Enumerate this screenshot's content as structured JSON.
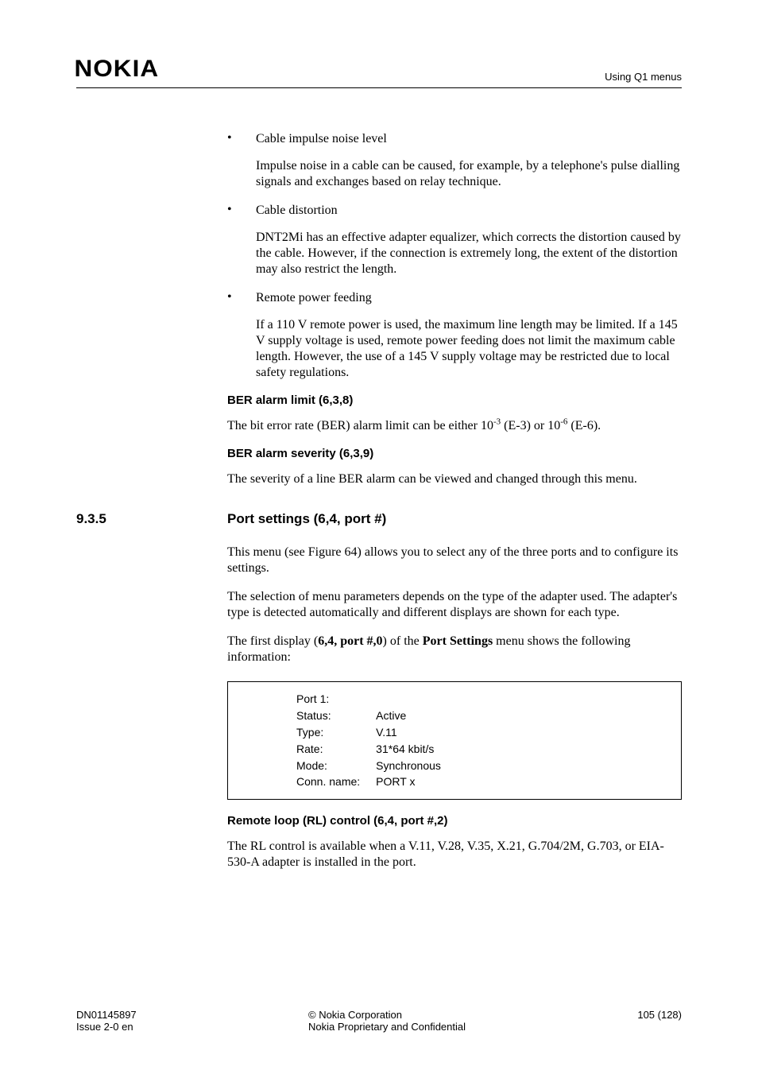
{
  "header": {
    "logo": "NOKIA",
    "right": "Using Q1 menus"
  },
  "bullets": [
    {
      "title": "Cable impulse noise level",
      "body": "Impulse noise in a cable can be caused, for example, by a telephone's pulse dialling signals and exchanges based on relay technique."
    },
    {
      "title": "Cable distortion",
      "body": "DNT2Mi has an effective adapter equalizer, which corrects the distortion caused by the cable. However, if the connection is extremely long, the extent of the distortion may also restrict the length."
    },
    {
      "title": "Remote power feeding",
      "body": "If a 110 V remote power is used, the maximum line length may be limited. If a 145 V supply voltage is used, remote power feeding does not limit the maximum cable length. However, the use of a 145 V supply voltage may be restricted due to local safety regulations."
    }
  ],
  "ber_limit": {
    "heading": "BER alarm limit (6,3,8)",
    "text_pre": "The bit error rate (BER) alarm limit can be either 10",
    "exp1": "-3",
    "mid1": " (E-3) or 10",
    "exp2": "-6",
    "mid2": " (E-6)."
  },
  "ber_severity": {
    "heading": "BER alarm severity (6,3,9)",
    "text": "The severity of a line BER alarm can be viewed and changed through this menu."
  },
  "section": {
    "num": "9.3.5",
    "title": "Port settings (6,4, port #)",
    "p1": "This menu (see Figure 64) allows you to select any of the three ports and to configure its settings.",
    "p2": "The selection of menu parameters depends on the type of the adapter used. The adapter's type is detected automatically and different displays are shown for each type.",
    "p3_pre": "The first display (",
    "p3_bold1": "6,4, port #,0",
    "p3_mid": ") of the ",
    "p3_bold2": "Port Settings",
    "p3_post": " menu shows the following information:"
  },
  "codebox": {
    "header": "Port 1:",
    "rows": [
      {
        "k": "Status:",
        "v": "Active"
      },
      {
        "k": "Type:",
        "v": "V.11"
      },
      {
        "k": "Rate:",
        "v": "31*64 kbit/s"
      },
      {
        "k": "Mode:",
        "v": "Synchronous"
      },
      {
        "k": "Conn. name:",
        "v": "PORT x"
      }
    ]
  },
  "remote_loop": {
    "heading": "Remote loop (RL) control (6,4, port #,2)",
    "text": "The RL control is available when a V.11, V.28, V.35, X.21, G.704/2M, G.703, or EIA-530-A adapter is installed in the port."
  },
  "footer": {
    "left1": "DN01145897",
    "left2": "Issue 2-0 en",
    "center1": "© Nokia Corporation",
    "center2": "Nokia Proprietary and Confidential",
    "right": "105 (128)"
  }
}
